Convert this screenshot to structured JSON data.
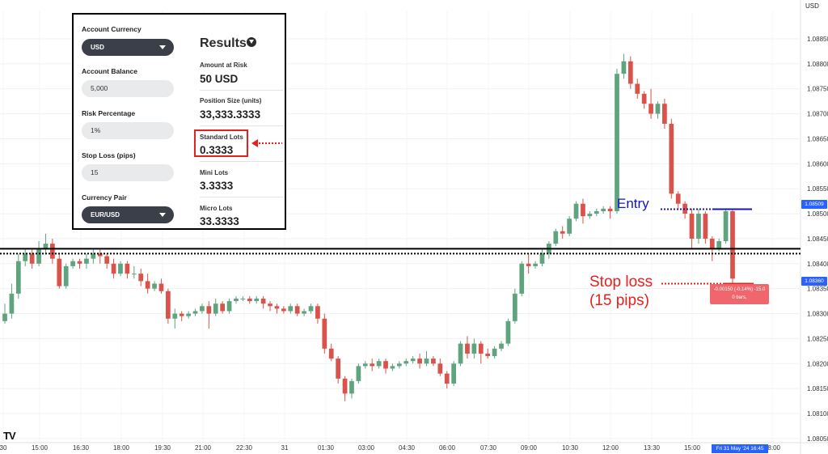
{
  "calculator": {
    "account_currency_label": "Account Currency",
    "account_currency_value": "USD",
    "account_balance_label": "Account Balance",
    "account_balance_value": "5,000",
    "risk_percentage_label": "Risk Percentage",
    "risk_percentage_value": "1%",
    "stop_loss_label": "Stop Loss (pips)",
    "stop_loss_value": "15",
    "currency_pair_label": "Currency Pair",
    "currency_pair_value": "EUR/USD"
  },
  "results": {
    "title": "Results",
    "info_icon": "info-circle-icon",
    "amount_at_risk_label": "Amount at Risk",
    "amount_at_risk_value": "50 USD",
    "position_size_label": "Position Size (units)",
    "position_size_value": "33,333.3333",
    "standard_lots_label": "Standard Lots",
    "standard_lots_value": "0.3333",
    "mini_lots_label": "Mini Lots",
    "mini_lots_value": "3.3333",
    "micro_lots_label": "Micro Lots",
    "micro_lots_value": "33.3333"
  },
  "chart": {
    "currency_label": "USD",
    "logo_text": "TV",
    "y_ticks": [
      "1.08850",
      "1.08800",
      "1.08750",
      "1.08700",
      "1.08650",
      "1.08600",
      "1.08550",
      "1.08500",
      "1.08450",
      "1.08400",
      "1.08350",
      "1.08300",
      "1.08250",
      "1.08200",
      "1.08150",
      "1.08100",
      "1.08050"
    ],
    "x_ticks": [
      "30",
      "15:00",
      "16:30",
      "18:00",
      "19:30",
      "21:00",
      "22:30",
      "31",
      "01:30",
      "03:00",
      "04:30",
      "06:00",
      "07:30",
      "09:00",
      "10:30",
      "12:00",
      "13:30",
      "15:00",
      "18:00"
    ],
    "entry_label": "Entry",
    "stop_loss_label_line1": "Stop loss",
    "stop_loss_label_line2": "(15 pips)",
    "measure_line1": "-0.00150 (-0.14%) -15.0",
    "measure_line2": "0 bars,",
    "price_tag_entry": "1.08509",
    "price_tag_stop": "1.08360",
    "time_tag": "Fri 31 May '24   16:45",
    "colors": {
      "up": "#5fa37f",
      "down": "#d9534a",
      "entry_line": "#1515c0",
      "stop_line": "#e8201d",
      "support_line": "#000000"
    }
  },
  "chart_data": {
    "type": "candlestick",
    "y_range": [
      1.08045,
      1.08905
    ],
    "candles": [
      [
        1.08285,
        1.083,
        1.0828,
        1.0832
      ],
      [
        1.083,
        1.0834,
        1.0829,
        1.0836
      ],
      [
        1.0834,
        1.08405,
        1.0833,
        1.0842
      ],
      [
        1.08405,
        1.0842,
        1.08395,
        1.0843
      ],
      [
        1.0842,
        1.084,
        1.0839,
        1.0843
      ],
      [
        1.084,
        1.0843,
        1.08395,
        1.08445
      ],
      [
        1.0843,
        1.0844,
        1.0842,
        1.0846
      ],
      [
        1.0844,
        1.0841,
        1.084,
        1.0845
      ],
      [
        1.0841,
        1.08355,
        1.0835,
        1.0842
      ],
      [
        1.08355,
        1.08395,
        1.0835,
        1.084
      ],
      [
        1.08395,
        1.08405,
        1.0839,
        1.0841
      ],
      [
        1.08405,
        1.084,
        1.0839,
        1.0841
      ],
      [
        1.084,
        1.0841,
        1.0839,
        1.0842
      ],
      [
        1.0841,
        1.0842,
        1.084,
        1.0843
      ],
      [
        1.0842,
        1.08415,
        1.084,
        1.0843
      ],
      [
        1.08415,
        1.084,
        1.0839,
        1.0842
      ],
      [
        1.084,
        1.0838,
        1.0837,
        1.0841
      ],
      [
        1.0838,
        1.084,
        1.08375,
        1.08405
      ],
      [
        1.084,
        1.0838,
        1.0837,
        1.08405
      ],
      [
        1.0838,
        1.0838,
        1.0837,
        1.08395
      ],
      [
        1.0838,
        1.08365,
        1.08355,
        1.0839
      ],
      [
        1.08365,
        1.0835,
        1.0834,
        1.0838
      ],
      [
        1.0835,
        1.0836,
        1.08345,
        1.08365
      ],
      [
        1.0836,
        1.08345,
        1.0834,
        1.0837
      ],
      [
        1.08345,
        1.0829,
        1.0828,
        1.0835
      ],
      [
        1.0829,
        1.083,
        1.0827,
        1.0831
      ],
      [
        1.083,
        1.08295,
        1.08285,
        1.08305
      ],
      [
        1.08295,
        1.083,
        1.0829,
        1.08305
      ],
      [
        1.083,
        1.08305,
        1.08295,
        1.0831
      ],
      [
        1.08305,
        1.08315,
        1.083,
        1.0832
      ],
      [
        1.08315,
        1.083,
        1.0827,
        1.08325
      ],
      [
        1.083,
        1.0832,
        1.08295,
        1.0833
      ],
      [
        1.0832,
        1.08305,
        1.083,
        1.08325
      ],
      [
        1.08305,
        1.08325,
        1.083,
        1.0833
      ],
      [
        1.08325,
        1.0833,
        1.0832,
        1.08335
      ],
      [
        1.0833,
        1.0833,
        1.08325,
        1.08335
      ],
      [
        1.0833,
        1.08325,
        1.0832,
        1.08335
      ],
      [
        1.08325,
        1.0833,
        1.0832,
        1.08335
      ],
      [
        1.0833,
        1.0832,
        1.0831,
        1.08335
      ],
      [
        1.0832,
        1.08315,
        1.08305,
        1.08325
      ],
      [
        1.08315,
        1.0831,
        1.083,
        1.0832
      ],
      [
        1.0831,
        1.08305,
        1.083,
        1.08315
      ],
      [
        1.08305,
        1.08315,
        1.083,
        1.0832
      ],
      [
        1.08315,
        1.083,
        1.08295,
        1.0832
      ],
      [
        1.083,
        1.08305,
        1.08295,
        1.0831
      ],
      [
        1.08305,
        1.08315,
        1.083,
        1.0832
      ],
      [
        1.08315,
        1.0829,
        1.0828,
        1.0832
      ],
      [
        1.0829,
        1.0823,
        1.0822,
        1.083
      ],
      [
        1.0823,
        1.0821,
        1.08205,
        1.0824
      ],
      [
        1.0821,
        1.0817,
        1.0816,
        1.08215
      ],
      [
        1.0817,
        1.0814,
        1.08125,
        1.08175
      ],
      [
        1.0814,
        1.08165,
        1.0813,
        1.0817
      ],
      [
        1.08165,
        1.08195,
        1.0816,
        1.082
      ],
      [
        1.08195,
        1.082,
        1.0819,
        1.08205
      ],
      [
        1.082,
        1.08195,
        1.08185,
        1.0821
      ],
      [
        1.08195,
        1.08205,
        1.0819,
        1.0821
      ],
      [
        1.08205,
        1.0819,
        1.0818,
        1.0821
      ],
      [
        1.0819,
        1.08195,
        1.08185,
        1.082
      ],
      [
        1.08195,
        1.082,
        1.0819,
        1.08205
      ],
      [
        1.082,
        1.08205,
        1.08195,
        1.0821
      ],
      [
        1.08205,
        1.0821,
        1.082,
        1.08215
      ],
      [
        1.0821,
        1.082,
        1.0819,
        1.0822
      ],
      [
        1.082,
        1.0821,
        1.08195,
        1.08225
      ],
      [
        1.0821,
        1.082,
        1.08195,
        1.08215
      ],
      [
        1.082,
        1.0818,
        1.08175,
        1.0821
      ],
      [
        1.0818,
        1.0816,
        1.0815,
        1.08185
      ],
      [
        1.0816,
        1.082,
        1.08155,
        1.08205
      ],
      [
        1.082,
        1.0824,
        1.08195,
        1.08245
      ],
      [
        1.0824,
        1.0822,
        1.0821,
        1.08255
      ],
      [
        1.0822,
        1.0824,
        1.0821,
        1.0825
      ],
      [
        1.0824,
        1.0822,
        1.082,
        1.08245
      ],
      [
        1.0822,
        1.08215,
        1.0821,
        1.0823
      ],
      [
        1.08215,
        1.0823,
        1.0821,
        1.08235
      ],
      [
        1.0823,
        1.0824,
        1.08225,
        1.08245
      ],
      [
        1.0824,
        1.08285,
        1.08235,
        1.0829
      ],
      [
        1.08285,
        1.0834,
        1.0828,
        1.0835
      ],
      [
        1.0834,
        1.084,
        1.08335,
        1.08405
      ],
      [
        1.084,
        1.08395,
        1.0838,
        1.0842
      ],
      [
        1.08395,
        1.084,
        1.0839,
        1.08405
      ],
      [
        1.084,
        1.0842,
        1.08395,
        1.0843
      ],
      [
        1.0842,
        1.0844,
        1.0841,
        1.08445
      ],
      [
        1.0844,
        1.08465,
        1.08435,
        1.0847
      ],
      [
        1.08465,
        1.0846,
        1.0845,
        1.08475
      ],
      [
        1.0846,
        1.0849,
        1.08455,
        1.08495
      ],
      [
        1.0849,
        1.0852,
        1.08485,
        1.08525
      ],
      [
        1.0852,
        1.08495,
        1.0848,
        1.0853
      ],
      [
        1.08495,
        1.085,
        1.0849,
        1.08505
      ],
      [
        1.085,
        1.08505,
        1.08495,
        1.0851
      ],
      [
        1.08505,
        1.0851,
        1.085,
        1.08515
      ],
      [
        1.0851,
        1.08505,
        1.0849,
        1.08515
      ],
      [
        1.08505,
        1.0878,
        1.085,
        1.0879
      ],
      [
        1.0878,
        1.08805,
        1.0877,
        1.0882
      ],
      [
        1.08805,
        1.0876,
        1.0875,
        1.08815
      ],
      [
        1.0876,
        1.0874,
        1.0873,
        1.0877
      ],
      [
        1.0874,
        1.0872,
        1.0871,
        1.08745
      ],
      [
        1.0872,
        1.087,
        1.0869,
        1.0875
      ],
      [
        1.087,
        1.0872,
        1.0869,
        1.08725
      ],
      [
        1.0872,
        1.0868,
        1.0867,
        1.0873
      ],
      [
        1.0868,
        1.0854,
        1.0853,
        1.0869
      ],
      [
        1.0854,
        1.0852,
        1.0851,
        1.08545
      ],
      [
        1.0852,
        1.085,
        1.0849,
        1.08525
      ],
      [
        1.085,
        1.0845,
        1.0843,
        1.0851
      ],
      [
        1.0845,
        1.085,
        1.0844,
        1.0851
      ],
      [
        1.085,
        1.0845,
        1.0844,
        1.08505
      ],
      [
        1.0845,
        1.0843,
        1.08405,
        1.08455
      ],
      [
        1.0843,
        1.08445,
        1.08425,
        1.0845
      ],
      [
        1.08445,
        1.08505,
        1.0844,
        1.0851
      ],
      [
        1.08505,
        1.0837,
        1.0836,
        1.0851
      ]
    ],
    "support_level": 1.08425,
    "entry_price": 1.08509,
    "stop_price": 1.0836
  }
}
